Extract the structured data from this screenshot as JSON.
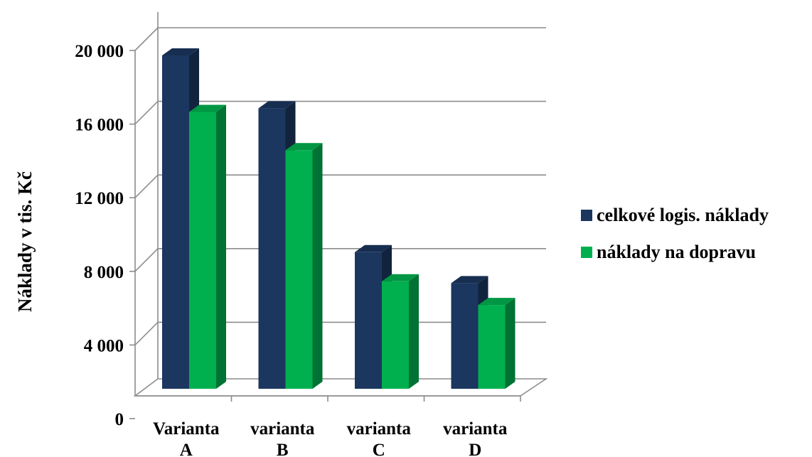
{
  "chart_data": {
    "type": "bar",
    "categories": [
      [
        "Varianta",
        "A"
      ],
      [
        "varianta",
        "B"
      ],
      [
        "varianta",
        "C"
      ],
      [
        "varianta",
        "D"
      ]
    ],
    "series": [
      {
        "name": "celkové logis. náklady",
        "color": "#1b365f",
        "values": [
          18300,
          15400,
          7500,
          5800
        ]
      },
      {
        "name": "náklady na dopravu",
        "color": "#00b04f",
        "values": [
          15200,
          13100,
          5900,
          4600
        ]
      }
    ],
    "ylabel": "Náklady v tis. Kč",
    "ylim": [
      0,
      20000
    ],
    "yticks": [
      0,
      4000,
      8000,
      12000,
      16000,
      20000
    ],
    "ytick_labels": [
      "0",
      "4 000",
      "8 000",
      "12 000",
      "16 000",
      "20 000"
    ],
    "grid": true,
    "legend": "right",
    "style": "3d-column"
  }
}
